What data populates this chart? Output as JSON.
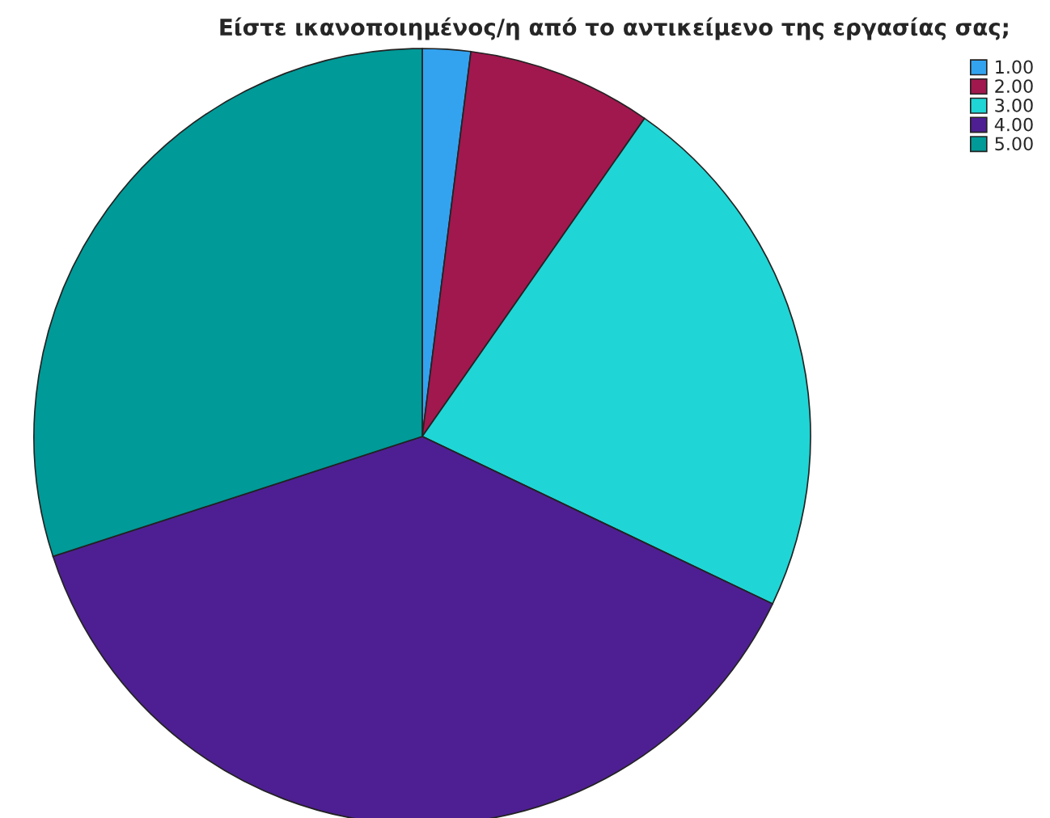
{
  "chart_data": {
    "type": "pie",
    "title": "Είστε ικανοποιημένος/η από το αντικείμενο της εργασίας σας;",
    "categories": [
      "1.00",
      "2.00",
      "3.00",
      "4.00",
      "5.00"
    ],
    "values": [
      2.0,
      7.7,
      22.4,
      37.9,
      30.0
    ],
    "colors": [
      "#33a3f0",
      "#a0184e",
      "#20d5d5",
      "#4e1f92",
      "#009a98"
    ],
    "legend": "top right"
  }
}
